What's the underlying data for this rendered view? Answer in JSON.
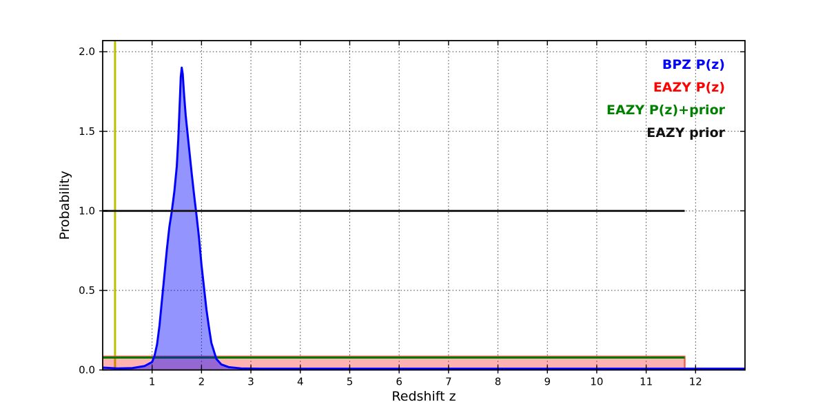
{
  "chart_data": {
    "type": "line",
    "title": "",
    "xlabel": "Redshift z",
    "ylabel": "Probability",
    "xlim": [
      0,
      13.0
    ],
    "ylim": [
      0,
      2.07
    ],
    "x_ticks": {
      "values": [
        1,
        2,
        3,
        4,
        5,
        6,
        7,
        8,
        9,
        10,
        11,
        12
      ],
      "labels": [
        "1",
        "2",
        "3",
        "4",
        "5",
        "6",
        "7",
        "8",
        "9",
        "10",
        "11",
        "12"
      ]
    },
    "y_ticks": {
      "values": [
        0,
        0.5,
        1.0,
        1.5,
        2.0
      ],
      "labels": [
        "0.0",
        "0.5",
        "1.0",
        "1.5",
        "2.0"
      ]
    },
    "grid": {
      "visible": true,
      "style": "dotted",
      "color": "#3a3a3a"
    },
    "legend": {
      "position": "upper right",
      "frame": false,
      "entries": [
        {
          "label": "BPZ P(z)",
          "color": "#0000ff"
        },
        {
          "label": "EAZY P(z)",
          "color": "#ff0000"
        },
        {
          "label": "EAZY P(z)+prior",
          "color": "#008000"
        },
        {
          "label": "EAZY prior",
          "color": "#111111"
        }
      ]
    },
    "series": [
      {
        "key": "redshift-marker",
        "name": "redshift marker",
        "type": "vline",
        "color": "#bfbf00",
        "line_width": 3,
        "x": 0.25
      },
      {
        "key": "eazy-pz",
        "name": "EAZY P(z)",
        "type": "line",
        "color": "rgba(235,80,60,0.85)",
        "line_width": 2.5,
        "fill_rgba": "rgba(255,0,0,0.3)",
        "x": [
          0.0,
          11.78,
          11.78
        ],
        "y": [
          0.085,
          0.085,
          0.0
        ]
      },
      {
        "key": "eazy-pz-prior",
        "name": "EAZY P(z)+prior",
        "type": "line",
        "color": "#007d00",
        "line_width": 3,
        "x": [
          0.0,
          11.78
        ],
        "y": [
          0.078,
          0.078
        ]
      },
      {
        "key": "bpz-pz",
        "name": "BPZ P(z)",
        "type": "line",
        "color": "#0000ff",
        "line_width": 3,
        "fill_rgba": "rgba(0,0,255,0.42)",
        "x": [
          0.0,
          0.3,
          0.6,
          0.85,
          1.0,
          1.05,
          1.1,
          1.15,
          1.2,
          1.25,
          1.3,
          1.35,
          1.4,
          1.45,
          1.5,
          1.53,
          1.56,
          1.58,
          1.6,
          1.62,
          1.65,
          1.68,
          1.72,
          1.76,
          1.8,
          1.85,
          1.9,
          1.95,
          2.0,
          2.05,
          2.1,
          2.15,
          2.2,
          2.3,
          2.4,
          2.55,
          2.8,
          3.2,
          13.0
        ],
        "y": [
          0.015,
          0.01,
          0.012,
          0.025,
          0.05,
          0.09,
          0.16,
          0.28,
          0.44,
          0.6,
          0.76,
          0.9,
          1.0,
          1.12,
          1.28,
          1.45,
          1.68,
          1.84,
          1.9,
          1.86,
          1.72,
          1.6,
          1.48,
          1.36,
          1.24,
          1.1,
          0.97,
          0.83,
          0.66,
          0.52,
          0.38,
          0.27,
          0.17,
          0.07,
          0.035,
          0.018,
          0.01,
          0.008,
          0.008
        ]
      },
      {
        "key": "eazy-prior",
        "name": "EAZY prior",
        "type": "line",
        "color": "#1c1c1c",
        "line_width": 3,
        "x": [
          0.0,
          11.78
        ],
        "y": [
          1.0,
          1.0
        ]
      }
    ]
  }
}
